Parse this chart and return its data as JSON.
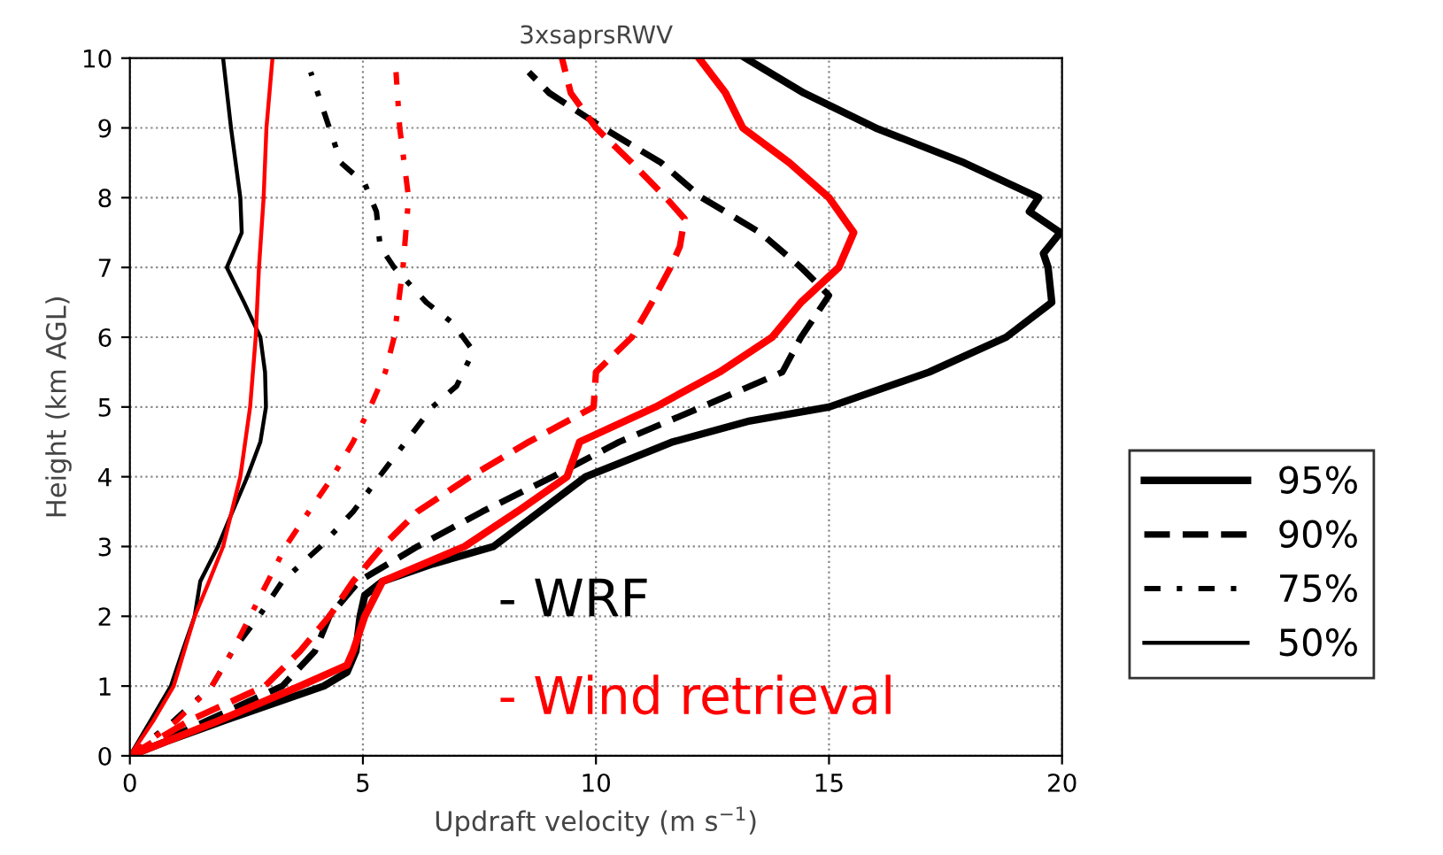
{
  "chart_data": {
    "type": "line",
    "title": "3xsaprsRWV",
    "xlabel": "Updraft velocity (m s$^{−1}$)",
    "ylabel": "Height (km AGL)",
    "xlim": [
      0,
      20
    ],
    "ylim": [
      0,
      10
    ],
    "xticks": [
      0,
      5,
      10,
      15,
      20
    ],
    "yticks": [
      0,
      1,
      2,
      3,
      4,
      5,
      6,
      7,
      8,
      9,
      10
    ],
    "grid": true,
    "legend": "right",
    "marker": "none",
    "annotations": [
      "- WRF",
      "- Wind retrieval"
    ],
    "series": [
      {
        "name": "95%",
        "color": "#000000",
        "line_style": "solid",
        "x": [
          0,
          0.76,
          2.0,
          4.16,
          4.66,
          4.85,
          4.94,
          5.04,
          5.42,
          6.5,
          7.8,
          9.78,
          11.65,
          13.3,
          15.0,
          17.15,
          18.8,
          19.78,
          19.7,
          19.6,
          19.96,
          19.3,
          19.5,
          17.9,
          16.0,
          14.46,
          13.21
        ],
        "values": [
          0,
          0.2,
          0.5,
          1,
          1.2,
          1.5,
          2,
          2.3,
          2.5,
          2.75,
          3,
          4,
          4.5,
          4.8,
          5,
          5.5,
          6,
          6.5,
          7,
          7.2,
          7.5,
          7.8,
          8,
          8.5,
          9,
          9.5,
          10
        ]
      },
      {
        "name": "90%",
        "color": "#000000",
        "line_style": "dashed",
        "x": [
          0,
          1.64,
          3.27,
          3.97,
          4.28,
          4.91,
          6.17,
          7.56,
          9.07,
          10.5,
          12.27,
          14.0,
          14.4,
          15.0,
          14.4,
          13.52,
          12.27,
          11.4,
          10.15,
          9.0,
          8.56
        ],
        "values": [
          0,
          0.5,
          1,
          1.5,
          2,
          2.5,
          3,
          3.5,
          4,
          4.5,
          5,
          5.5,
          6,
          6.6,
          7,
          7.5,
          8,
          8.5,
          9,
          9.5,
          9.8
        ]
      },
      {
        "name": "75%",
        "color": "#000000",
        "line_style": "dotted",
        "x": [
          0,
          0.94,
          1.76,
          2.2,
          2.77,
          3.27,
          4.09,
          4.79,
          5.35,
          5.92,
          6.49,
          7.01,
          7.37,
          6.93,
          6.36,
          5.67,
          5.37,
          5.29,
          5.04,
          4.53,
          4.28,
          3.88
        ],
        "values": [
          0,
          0.5,
          1,
          1.5,
          2,
          2.5,
          3,
          3.5,
          4,
          4.5,
          5,
          5.3,
          5.8,
          6.2,
          6.5,
          7,
          7.3,
          7.8,
          8.2,
          8.5,
          9,
          9.8
        ]
      },
      {
        "name": "50%",
        "color": "#000000",
        "line_style": "solid",
        "x": [
          0,
          0.44,
          0.88,
          1.13,
          1.39,
          1.51,
          1.89,
          2.2,
          2.52,
          2.8,
          2.92,
          2.9,
          2.8,
          2.45,
          2.08,
          2.4,
          2.37,
          2.17,
          2.0
        ],
        "values": [
          0,
          0.5,
          1,
          1.5,
          2,
          2.5,
          3,
          3.5,
          4,
          4.5,
          5,
          5.5,
          6,
          6.5,
          7,
          7.5,
          8,
          9,
          10
        ]
      },
      {
        "color": "#ff0000",
        "line_style": "solid",
        "x": [
          0,
          1.89,
          3.65,
          4.66,
          4.79,
          5.04,
          5.42,
          7.18,
          8.31,
          9.38,
          9.65,
          11.28,
          12.65,
          13.78,
          14.4,
          15.21,
          15.53,
          15.0,
          14.15,
          13.15,
          12.78,
          12.21
        ],
        "values": [
          0,
          0.5,
          1,
          1.3,
          1.5,
          2,
          2.5,
          3,
          3.5,
          4,
          4.5,
          5,
          5.5,
          6,
          6.5,
          7,
          7.5,
          8,
          8.5,
          9,
          9.5,
          10
        ]
      },
      {
        "color": "#ff0000",
        "line_style": "dashed",
        "x": [
          0,
          1.26,
          2.9,
          3.65,
          4.28,
          4.79,
          5.42,
          6.17,
          7.3,
          8.56,
          9.95,
          10.0,
          10.77,
          11.2,
          11.6,
          11.8,
          11.9,
          11.5,
          10.77,
          10.0,
          9.46,
          9.27
        ],
        "values": [
          0,
          0.5,
          1,
          1.5,
          2,
          2.5,
          3,
          3.5,
          4,
          4.5,
          5,
          5.5,
          6,
          6.5,
          7,
          7.3,
          7.7,
          8,
          8.5,
          9,
          9.5,
          10
        ]
      },
      {
        "color": "#ff0000",
        "line_style": "dotted",
        "x": [
          0,
          1.0,
          1.76,
          2.2,
          2.58,
          2.96,
          3.34,
          3.84,
          4.35,
          4.79,
          5.16,
          5.48,
          5.67,
          5.86,
          5.98,
          5.79,
          5.71
        ],
        "values": [
          0,
          0.5,
          1,
          1.5,
          2,
          2.5,
          3,
          3.5,
          4,
          4.5,
          5,
          5.5,
          6,
          7,
          8,
          9,
          9.8
        ]
      },
      {
        "color": "#ff0000",
        "line_style": "solid",
        "x": [
          0,
          0.5,
          0.94,
          1.39,
          1.7,
          2.0,
          2.37,
          2.58,
          2.7,
          2.77,
          2.87,
          2.93,
          3.06
        ],
        "values": [
          0,
          0.5,
          1,
          2,
          2.5,
          3,
          4,
          5,
          6,
          7,
          8,
          9,
          10
        ]
      }
    ]
  }
}
